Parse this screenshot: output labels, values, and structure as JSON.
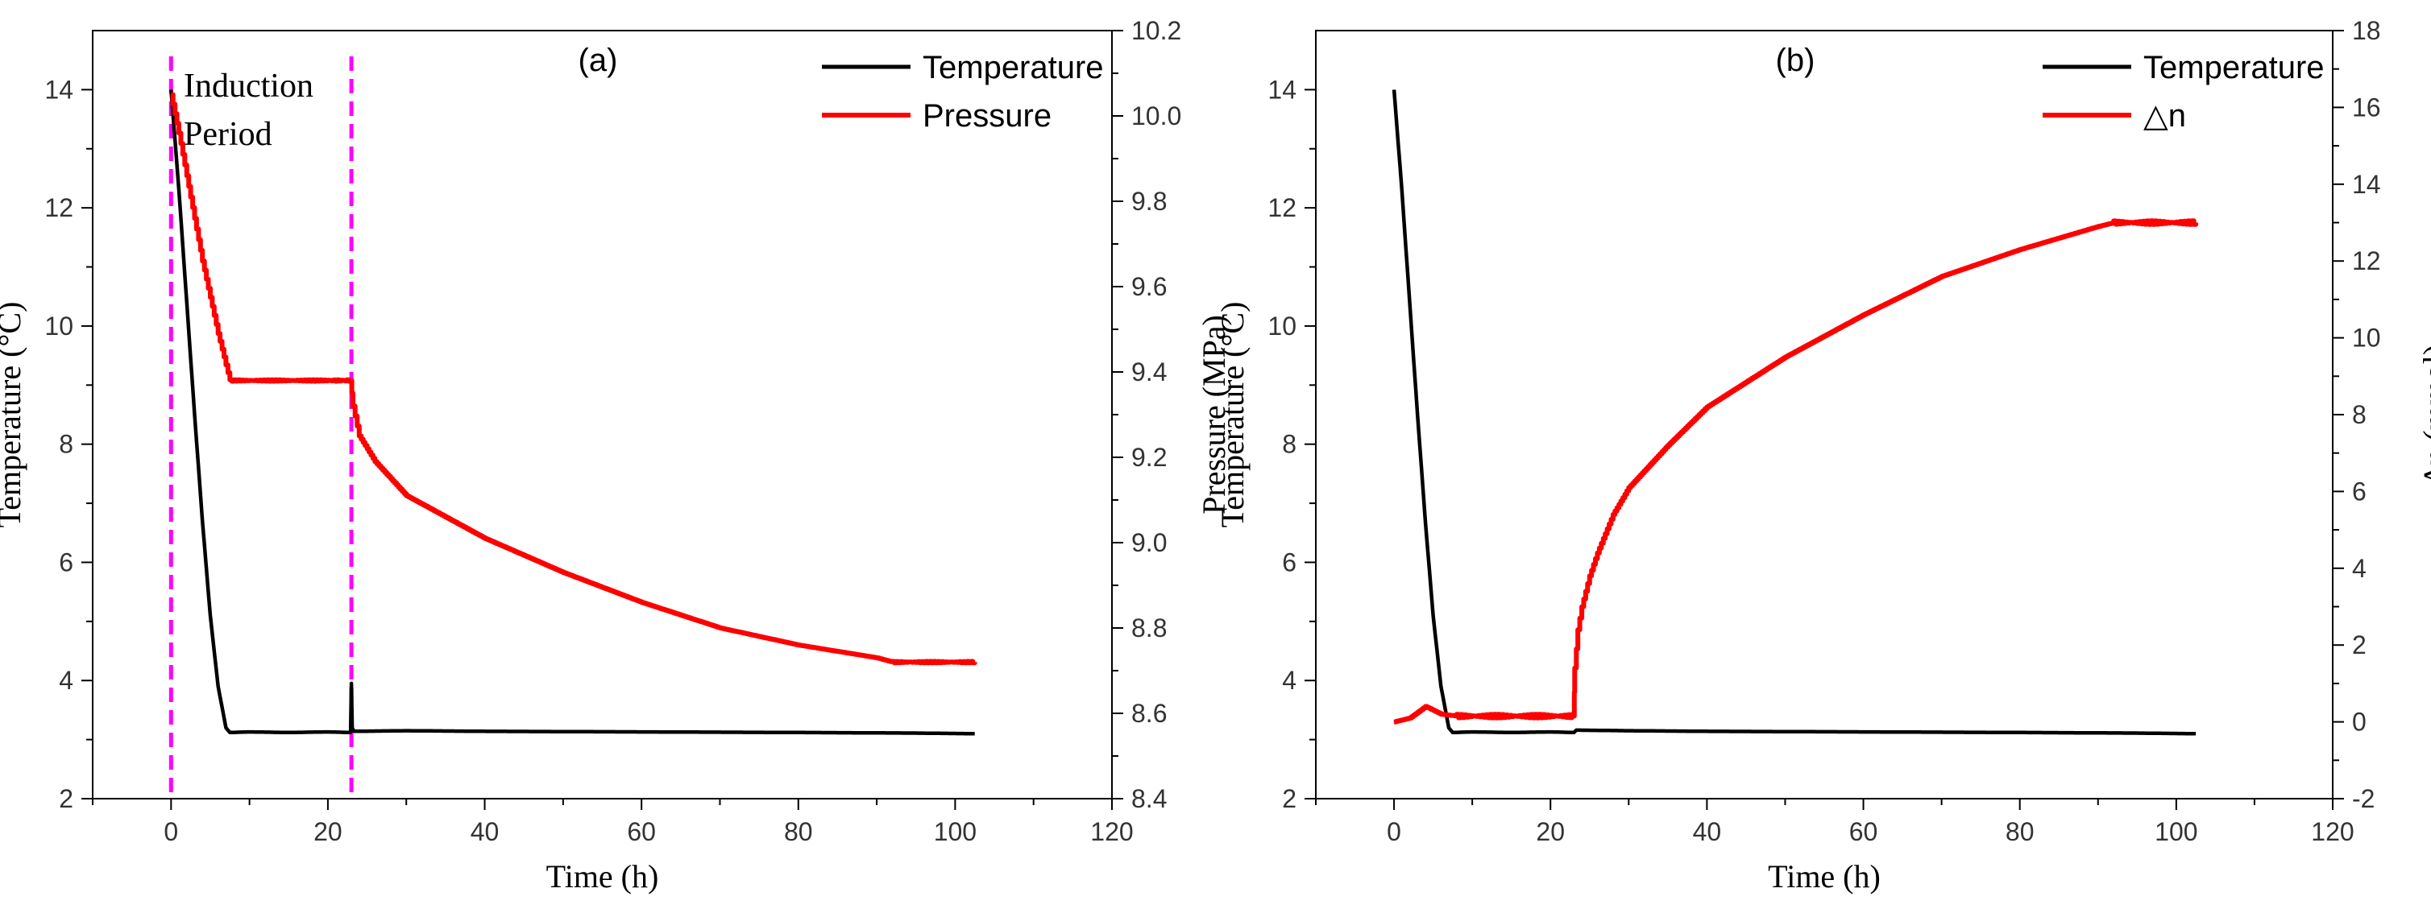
{
  "chart_data": [
    {
      "type": "line",
      "panel_label": "(a)",
      "xlabel": "Time (h)",
      "ylabel_left": "Temperature (°C)",
      "ylabel_right": "Pressure (MPa)",
      "xlim": [
        -10,
        120
      ],
      "xticks": [
        0,
        20,
        40,
        60,
        80,
        100,
        120
      ],
      "ylim_left": [
        2,
        15
      ],
      "yticks_left": [
        2,
        4,
        6,
        8,
        10,
        12,
        14
      ],
      "ylim_right": [
        8.4,
        10.2
      ],
      "yticks_right": [
        "8.4",
        "8.6",
        "8.8",
        "9.0",
        "9.2",
        "9.4",
        "9.6",
        "9.8",
        "10.0",
        "10.2"
      ],
      "legend": [
        "Temperature",
        "Pressure"
      ],
      "legend_position": "top-right",
      "annotation": {
        "lines": [
          "Induction",
          "Period"
        ],
        "markers_x": [
          0,
          23
        ]
      },
      "series": [
        {
          "name": "Temperature",
          "axis": "left",
          "color": "#000000",
          "x": [
            0,
            1,
            2,
            3,
            4,
            5,
            6,
            7,
            7.5,
            10,
            15,
            20,
            22.9,
            23.0,
            23.1,
            23.3,
            30,
            40,
            60,
            80,
            95,
            102.5
          ],
          "y": [
            14.0,
            12.3,
            10.4,
            8.5,
            6.7,
            5.1,
            3.9,
            3.2,
            3.12,
            3.13,
            3.12,
            3.13,
            3.12,
            3.95,
            3.2,
            3.14,
            3.15,
            3.14,
            3.13,
            3.12,
            3.11,
            3.1
          ]
        },
        {
          "name": "Pressure",
          "axis": "right",
          "color": "#ff0000",
          "x": [
            0,
            1,
            2,
            4,
            6,
            7.5,
            10,
            15,
            20,
            22.9,
            23.2,
            24,
            26,
            28,
            30,
            35,
            40,
            50,
            60,
            70,
            80,
            90,
            92,
            102.5
          ],
          "y": [
            10.05,
            9.96,
            9.86,
            9.66,
            9.49,
            9.38,
            9.38,
            9.38,
            9.38,
            9.38,
            9.32,
            9.25,
            9.19,
            9.15,
            9.11,
            9.06,
            9.01,
            8.93,
            8.86,
            8.8,
            8.76,
            8.73,
            8.72,
            8.72
          ]
        }
      ]
    },
    {
      "type": "line",
      "panel_label": "(b)",
      "xlabel": "Time (h)",
      "ylabel_left": "Temperature (°C)",
      "ylabel_right": "∆n (mmol)",
      "xlim": [
        -10,
        120
      ],
      "xticks": [
        0,
        20,
        40,
        60,
        80,
        100,
        120
      ],
      "ylim_left": [
        2,
        15
      ],
      "yticks_left": [
        2,
        4,
        6,
        8,
        10,
        12,
        14
      ],
      "ylim_right": [
        -2,
        18
      ],
      "yticks_right": [
        "-2",
        "0",
        "2",
        "4",
        "6",
        "8",
        "10",
        "12",
        "14",
        "16",
        "18"
      ],
      "legend": [
        "Temperature",
        "△n"
      ],
      "legend_position": "top-right",
      "series": [
        {
          "name": "Temperature",
          "axis": "left",
          "color": "#000000",
          "x": [
            0,
            1,
            2,
            3,
            4,
            5,
            6,
            7,
            7.5,
            10,
            15,
            20,
            23,
            23.3,
            30,
            40,
            60,
            80,
            95,
            102.5
          ],
          "y": [
            14.0,
            12.3,
            10.4,
            8.5,
            6.7,
            5.1,
            3.9,
            3.2,
            3.12,
            3.13,
            3.12,
            3.13,
            3.12,
            3.16,
            3.15,
            3.14,
            3.13,
            3.12,
            3.11,
            3.1
          ]
        },
        {
          "name": "△n",
          "axis": "right",
          "color": "#ff0000",
          "x": [
            0,
            2,
            4,
            6,
            8,
            10,
            15,
            20,
            23,
            23.1,
            23.5,
            24,
            25,
            26,
            28,
            30,
            35,
            40,
            50,
            60,
            70,
            80,
            85,
            90,
            92,
            102.5
          ],
          "y": [
            0,
            0.1,
            0.4,
            0.2,
            0.15,
            0.15,
            0.15,
            0.15,
            0.15,
            1.4,
            2.4,
            3.0,
            3.8,
            4.4,
            5.4,
            6.1,
            7.2,
            8.2,
            9.5,
            10.6,
            11.6,
            12.3,
            12.6,
            12.9,
            13.0,
            13.0
          ]
        }
      ]
    }
  ]
}
